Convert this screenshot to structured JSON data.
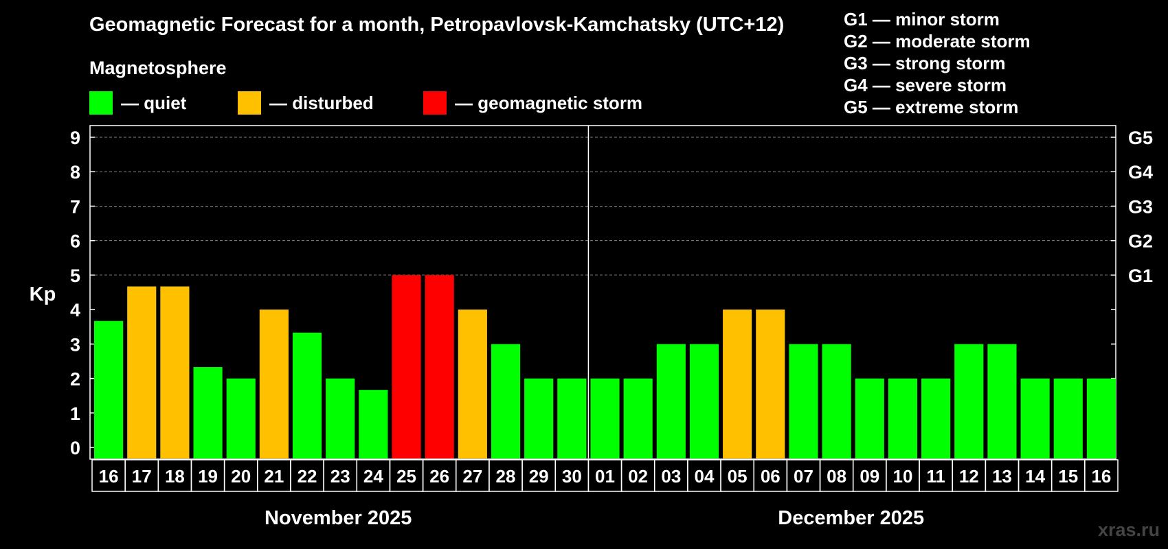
{
  "title": "Geomagnetic Forecast for a month, Petropavlovsk-Kamchatsky (UTC+12)",
  "magnetosphere_heading": "Magnetosphere",
  "legend": [
    {
      "label": "— quiet",
      "color": "#00FF00"
    },
    {
      "label": "— disturbed",
      "color": "#FFC000"
    },
    {
      "label": "— geomagnetic storm",
      "color": "#FF0000"
    }
  ],
  "storm_scale": [
    "G1 — minor storm",
    "G2 — moderate storm",
    "G3 — strong storm",
    "G4 — severe storm",
    "G5 — extreme storm"
  ],
  "watermark": "xras.ru",
  "colors": {
    "quiet": "#00FF00",
    "disturbed": "#FFC000",
    "storm": "#FF0000"
  },
  "chart_data": {
    "type": "bar",
    "ylabel": "Kp",
    "ylim": [
      0,
      9
    ],
    "yticks": [
      "0",
      "1",
      "2",
      "3",
      "4",
      "5",
      "6",
      "7",
      "8",
      "9"
    ],
    "right_ticks": [
      {
        "kp": 5,
        "label": "G1"
      },
      {
        "kp": 6,
        "label": "G2"
      },
      {
        "kp": 7,
        "label": "G3"
      },
      {
        "kp": 8,
        "label": "G4"
      },
      {
        "kp": 9,
        "label": "G5"
      }
    ],
    "months": [
      {
        "label": "November 2025",
        "start": 0,
        "end": 14
      },
      {
        "label": "December 2025",
        "start": 15,
        "end": 30
      }
    ],
    "categories": [
      "16",
      "17",
      "18",
      "19",
      "20",
      "21",
      "22",
      "23",
      "24",
      "25",
      "26",
      "27",
      "28",
      "29",
      "30",
      "01",
      "02",
      "03",
      "04",
      "05",
      "06",
      "07",
      "08",
      "09",
      "10",
      "11",
      "12",
      "13",
      "14",
      "15",
      "16"
    ],
    "values": [
      3.67,
      4.67,
      4.67,
      2.33,
      2,
      4,
      3.33,
      2,
      1.67,
      5,
      5,
      4,
      3,
      2,
      2,
      2,
      2,
      3,
      3,
      4,
      4,
      3,
      3,
      2,
      2,
      2,
      3,
      3,
      2,
      2,
      2
    ],
    "status": [
      "quiet",
      "disturbed",
      "disturbed",
      "quiet",
      "quiet",
      "disturbed",
      "quiet",
      "quiet",
      "quiet",
      "storm",
      "storm",
      "disturbed",
      "quiet",
      "quiet",
      "quiet",
      "quiet",
      "quiet",
      "quiet",
      "quiet",
      "disturbed",
      "disturbed",
      "quiet",
      "quiet",
      "quiet",
      "quiet",
      "quiet",
      "quiet",
      "quiet",
      "quiet",
      "quiet",
      "quiet"
    ],
    "grid": "dashed horizontal"
  }
}
